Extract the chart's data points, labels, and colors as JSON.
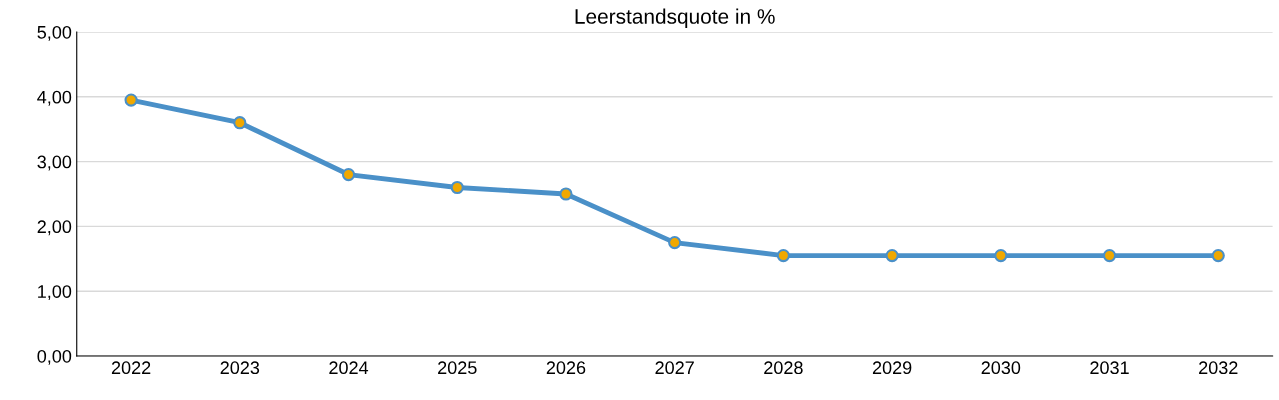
{
  "chart_data": {
    "type": "line",
    "title": "Leerstandsquote in %",
    "categories": [
      "2022",
      "2023",
      "2024",
      "2025",
      "2026",
      "2027",
      "2028",
      "2029",
      "2030",
      "2031",
      "2032"
    ],
    "series": [
      {
        "color": "#4a90c8",
        "values": [
          3.95,
          3.6,
          2.8,
          2.6,
          2.5,
          1.75,
          1.55,
          1.55,
          1.55,
          1.55,
          1.55
        ]
      }
    ],
    "ylim": [
      0,
      5
    ],
    "yticks": [
      {
        "value": 0,
        "label": "0,00"
      },
      {
        "value": 1,
        "label": "1,00"
      },
      {
        "value": 2,
        "label": "2,00"
      },
      {
        "value": 3,
        "label": "3,00"
      },
      {
        "value": 4,
        "label": "4,00"
      },
      {
        "value": 5,
        "label": "5,00"
      }
    ],
    "grid": "y",
    "marker": "circle",
    "line_style": "solid",
    "legend": false
  }
}
